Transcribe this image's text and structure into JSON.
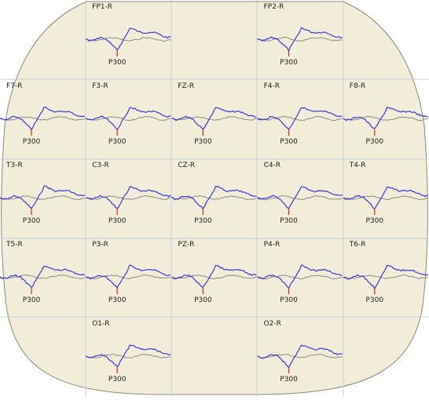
{
  "rows": [
    [
      null,
      {
        "label": "FP1-R",
        "marker": "P300"
      },
      null,
      {
        "label": "FP2-R",
        "marker": "P300"
      },
      null
    ],
    [
      {
        "label": "F7-R",
        "marker": "P300"
      },
      {
        "label": "F3-R",
        "marker": "P300"
      },
      {
        "label": "FZ-R",
        "marker": "P300"
      },
      {
        "label": "F4-R",
        "marker": "P300"
      },
      {
        "label": "F8-R",
        "marker": "P300"
      }
    ],
    [
      {
        "label": "T3-R",
        "marker": "P300"
      },
      {
        "label": "C3-R",
        "marker": "P300"
      },
      {
        "label": "CZ-R",
        "marker": "P300"
      },
      {
        "label": "C4-R",
        "marker": "P300"
      },
      {
        "label": "T4-R",
        "marker": "P300"
      }
    ],
    [
      {
        "label": "T5-R",
        "marker": "P300"
      },
      {
        "label": "P3-R",
        "marker": "P300"
      },
      {
        "label": "PZ-R",
        "marker": "P300"
      },
      {
        "label": "P4-R",
        "marker": "P300"
      },
      {
        "label": "T6-R",
        "marker": "P300"
      }
    ],
    [
      null,
      {
        "label": "O1-R",
        "marker": "P300"
      },
      null,
      {
        "label": "O2-R",
        "marker": "P300"
      },
      null
    ]
  ]
}
